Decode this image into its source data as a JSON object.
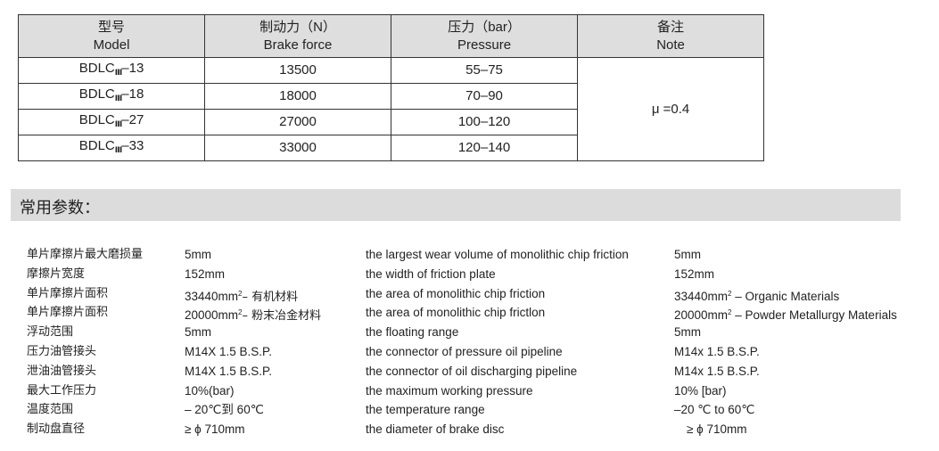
{
  "table": {
    "headers": [
      {
        "zh": "型号",
        "en": "Model"
      },
      {
        "zh": "制动力（N）",
        "en": "Brake force"
      },
      {
        "zh": "压力（bar）",
        "en": "Pressure"
      },
      {
        "zh": "备注",
        "en": "Note"
      }
    ],
    "rows": [
      {
        "model_prefix": "BDLC",
        "model_sub": "Ⅲ",
        "model_suffix": "–13",
        "force": "13500",
        "pressure": "55–75"
      },
      {
        "model_prefix": "BDLC",
        "model_sub": "Ⅲ",
        "model_suffix": "–18",
        "force": "18000",
        "pressure": "70–90"
      },
      {
        "model_prefix": "BDLC",
        "model_sub": "Ⅲ",
        "model_suffix": "–27",
        "force": "27000",
        "pressure": "100–120"
      },
      {
        "model_prefix": "BDLC",
        "model_sub": "Ⅲ",
        "model_suffix": "–33",
        "force": "33000",
        "pressure": "120–140"
      }
    ],
    "note": "μ =0.4"
  },
  "section_title": "常用参数：",
  "params": [
    {
      "zh": "单片摩擦片最大磨损量",
      "zh_value": "5mm",
      "en": "the largest wear volume of monolithic chip friction",
      "en_value": "5mm"
    },
    {
      "zh": "摩擦片宽度",
      "zh_value": "152mm",
      "en": "the width of friction plate",
      "en_value": "152mm"
    },
    {
      "zh": "单片摩擦片面积",
      "zh_value": "33440mm",
      "zh_sup": "2",
      "zh_value_tail": "– 有机材料",
      "en": "the area of monolithic chip friction",
      "en_value": "33440mm",
      "en_sup": "2",
      "en_value_tail": " – Organic Materials"
    },
    {
      "zh": "单片摩擦片面积",
      "zh_value": "20000mm",
      "zh_sup": "2",
      "zh_value_tail": "– 粉末冶金材料",
      "en": "the area of monolithic chip frictlon",
      "en_value": "20000mm",
      "en_sup": "2",
      "en_value_tail": " – Powder Metallurgy Materials"
    },
    {
      "zh": "浮动范围",
      "zh_value": "5mm",
      "en": "the floating range",
      "en_value": "5mm"
    },
    {
      "zh": "压力油管接头",
      "zh_value": "M14X 1.5 B.S.P.",
      "en": "the connector of pressure oil pipeline",
      "en_value": "M14x 1.5 B.S.P."
    },
    {
      "zh": "泄油油管接头",
      "zh_value": "M14X 1.5 B.S.P.",
      "en": "the connector of oil discharging pipeline",
      "en_value": "M14x 1.5 B.S.P."
    },
    {
      "zh": "最大工作压力",
      "zh_value": "10%(bar)",
      "en": "the maximum working pressure",
      "en_value": "10% [bar)"
    },
    {
      "zh": "温度范围",
      "zh_value": "– 20℃到 60℃",
      "en": "the temperature range",
      "en_value": "–20 ℃ to 60℃"
    },
    {
      "zh": "制动盘直径",
      "zh_value": "≥ ϕ 710mm",
      "en": "the diameter of brake disc",
      "en_value": "≥ ϕ 710mm"
    }
  ]
}
